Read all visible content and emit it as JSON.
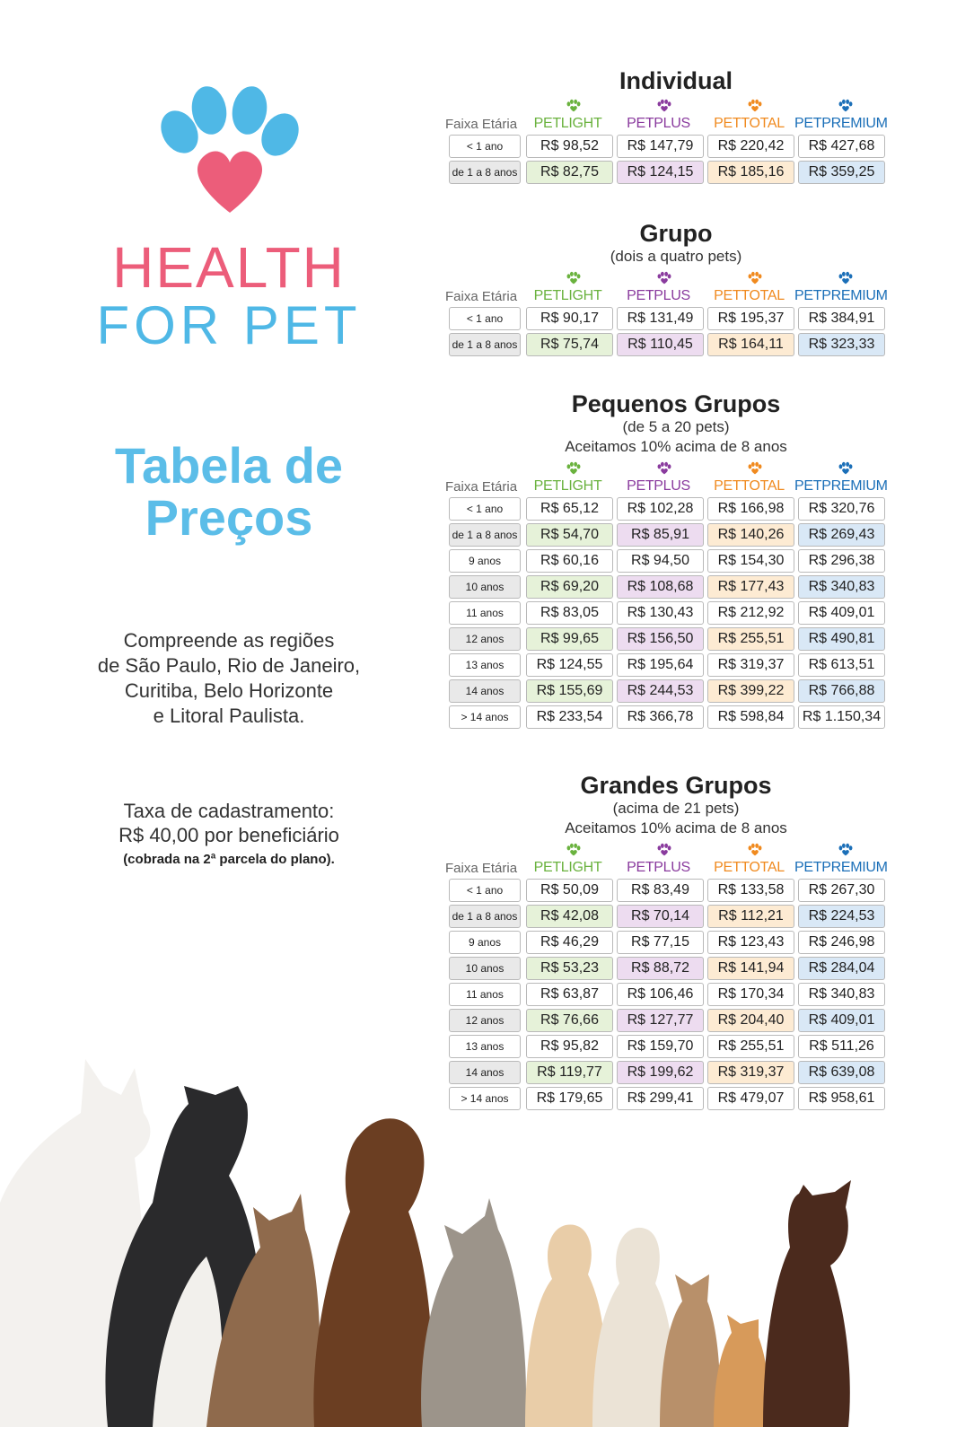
{
  "brand": {
    "line1": "HEALTH",
    "line2": "FOR PET"
  },
  "title": {
    "line1": "Tabela de",
    "line2": "Preços"
  },
  "regions": [
    "Compreende as regiões",
    "de São Paulo, Rio de Janeiro,",
    "Curitiba, Belo Horizonte",
    "e Litoral Paulista."
  ],
  "fee": {
    "line1": "Taxa de cadastramento:",
    "line2": "R$ 40,00 por beneficiário",
    "note": "(cobrada na 2ª parcela do plano)."
  },
  "colors": {
    "pink": "#ec5d7a",
    "blue": "#4fb8e6",
    "light": "#6ab23e",
    "plus": "#8a3b9e",
    "total": "#f08a1f",
    "premium": "#1b6fb8"
  },
  "header": {
    "faixa": "Faixa Etária",
    "plans": [
      {
        "pet": "PET",
        "name": "LIGHT",
        "color": "#6ab23e",
        "icon": "paw-icon"
      },
      {
        "pet": "PET",
        "name": "PLUS",
        "color": "#8a3b9e",
        "icon": "paw-icon"
      },
      {
        "pet": "PET",
        "name": "TOTAL",
        "color": "#f08a1f",
        "icon": "paw-icon"
      },
      {
        "pet": "PET",
        "name": "PREMIUM",
        "color": "#1b6fb8",
        "icon": "paw-icon"
      }
    ]
  },
  "sections": [
    {
      "title": "Individual",
      "subtitle": "",
      "note": "",
      "rows": [
        {
          "age": "< 1 ano",
          "prices": [
            "R$ 98,52",
            "R$ 147,79",
            "R$ 220,42",
            "R$ 427,68"
          ]
        },
        {
          "age": "de 1 a 8 anos",
          "prices": [
            "R$ 82,75",
            "R$ 124,15",
            "R$ 185,16",
            "R$ 359,25"
          ]
        }
      ]
    },
    {
      "title": "Grupo",
      "subtitle": "(dois a quatro pets)",
      "note": "",
      "rows": [
        {
          "age": "< 1 ano",
          "prices": [
            "R$ 90,17",
            "R$ 131,49",
            "R$ 195,37",
            "R$ 384,91"
          ]
        },
        {
          "age": "de 1 a 8 anos",
          "prices": [
            "R$ 75,74",
            "R$ 110,45",
            "R$ 164,11",
            "R$ 323,33"
          ]
        }
      ]
    },
    {
      "title": "Pequenos Grupos",
      "subtitle": "(de 5 a 20 pets)",
      "note": "Aceitamos 10% acima de 8 anos",
      "rows": [
        {
          "age": "< 1 ano",
          "prices": [
            "R$ 65,12",
            "R$ 102,28",
            "R$ 166,98",
            "R$ 320,76"
          ]
        },
        {
          "age": "de 1 a 8 anos",
          "prices": [
            "R$ 54,70",
            "R$ 85,91",
            "R$ 140,26",
            "R$ 269,43"
          ]
        },
        {
          "age": "9 anos",
          "prices": [
            "R$ 60,16",
            "R$ 94,50",
            "R$ 154,30",
            "R$ 296,38"
          ]
        },
        {
          "age": "10 anos",
          "prices": [
            "R$ 69,20",
            "R$ 108,68",
            "R$ 177,43",
            "R$ 340,83"
          ]
        },
        {
          "age": "11 anos",
          "prices": [
            "R$ 83,05",
            "R$ 130,43",
            "R$ 212,92",
            "R$ 409,01"
          ]
        },
        {
          "age": "12 anos",
          "prices": [
            "R$ 99,65",
            "R$ 156,50",
            "R$ 255,51",
            "R$ 490,81"
          ]
        },
        {
          "age": "13 anos",
          "prices": [
            "R$ 124,55",
            "R$ 195,64",
            "R$ 319,37",
            "R$ 613,51"
          ]
        },
        {
          "age": "14 anos",
          "prices": [
            "R$ 155,69",
            "R$ 244,53",
            "R$ 399,22",
            "R$ 766,88"
          ]
        },
        {
          "age": "> 14 anos",
          "prices": [
            "R$ 233,54",
            "R$ 366,78",
            "R$ 598,84",
            "R$ 1.150,34"
          ]
        }
      ]
    },
    {
      "title": "Grandes Grupos",
      "subtitle": "(acima de 21 pets)",
      "note": "Aceitamos 10% acima de 8 anos",
      "rows": [
        {
          "age": "< 1 ano",
          "prices": [
            "R$ 50,09",
            "R$ 83,49",
            "R$ 133,58",
            "R$ 267,30"
          ]
        },
        {
          "age": "de 1 a 8 anos",
          "prices": [
            "R$ 42,08",
            "R$ 70,14",
            "R$ 112,21",
            "R$ 224,53"
          ]
        },
        {
          "age": "9 anos",
          "prices": [
            "R$ 46,29",
            "R$ 77,15",
            "R$ 123,43",
            "R$ 246,98"
          ]
        },
        {
          "age": "10 anos",
          "prices": [
            "R$ 53,23",
            "R$ 88,72",
            "R$ 141,94",
            "R$ 284,04"
          ]
        },
        {
          "age": "11 anos",
          "prices": [
            "R$ 63,87",
            "R$ 106,46",
            "R$ 170,34",
            "R$ 340,83"
          ]
        },
        {
          "age": "12 anos",
          "prices": [
            "R$ 76,66",
            "R$ 127,77",
            "R$ 204,40",
            "R$ 409,01"
          ]
        },
        {
          "age": "13 anos",
          "prices": [
            "R$ 95,82",
            "R$ 159,70",
            "R$ 255,51",
            "R$ 511,26"
          ]
        },
        {
          "age": "14 anos",
          "prices": [
            "R$ 119,77",
            "R$ 199,62",
            "R$ 319,37",
            "R$ 639,08"
          ]
        },
        {
          "age": "> 14 anos",
          "prices": [
            "R$ 179,65",
            "R$ 299,41",
            "R$ 479,07",
            "R$ 958,61"
          ]
        }
      ]
    }
  ]
}
